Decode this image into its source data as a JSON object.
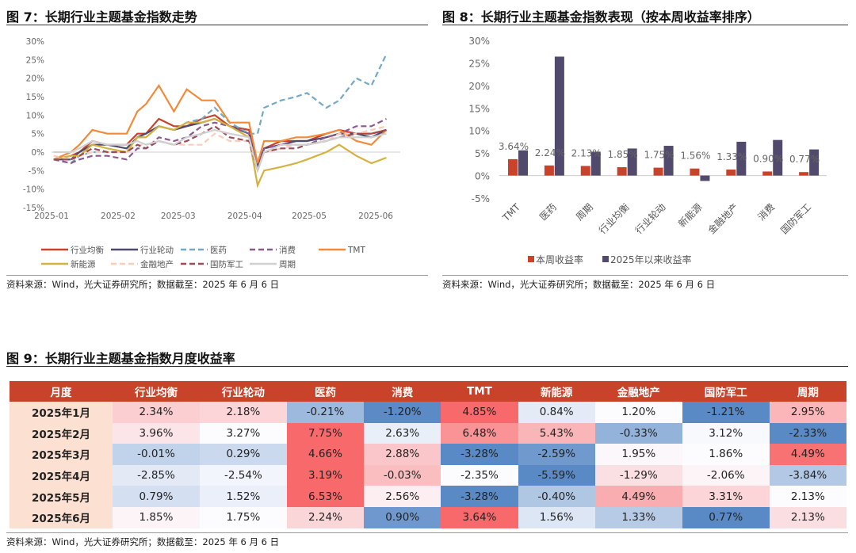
{
  "fig7": {
    "title": "图 7：长期行业主题基金指数走势",
    "source": "资料来源：Wind，光大证券研究所；数据截至：2025 年 6 月 6 日"
  },
  "fig8": {
    "title": "图 8：长期行业主题基金指数表现（按本周收益率排序）",
    "source": "资料来源：Wind，光大证券研究所；数据截至：2025 年 6 月 6 日"
  },
  "fig9": {
    "title": "图 9：长期行业主题基金指数月度收益率",
    "source": "资料来源：Wind，光大证券研究所；数据截至：2025 年 6 月 6 日"
  },
  "chart_data": [
    {
      "type": "line",
      "ylim": [
        -15,
        30
      ],
      "yticks": [
        "30%",
        "25%",
        "20%",
        "15%",
        "10%",
        "5%",
        "0%",
        "-5%",
        "-10%",
        "-15%"
      ],
      "ytick_values": [
        30,
        25,
        20,
        15,
        10,
        5,
        0,
        -5,
        -10,
        -15
      ],
      "xticks": [
        "2025-01",
        "2025-02",
        "2025-03",
        "2025-04",
        "2025-05",
        "2025-06"
      ],
      "legend": "bottom",
      "x": [
        "2025-01-02",
        "2025-01-10",
        "2025-01-14",
        "2025-01-20",
        "2025-01-27",
        "2025-02-05",
        "2025-02-10",
        "2025-02-14",
        "2025-02-20",
        "2025-02-27",
        "2025-03-05",
        "2025-03-12",
        "2025-03-18",
        "2025-03-25",
        "2025-04-03",
        "2025-04-07",
        "2025-04-10",
        "2025-04-18",
        "2025-04-25",
        "2025-04-30",
        "2025-05-09",
        "2025-05-15",
        "2025-05-23",
        "2025-05-30",
        "2025-06-06"
      ],
      "series": [
        {
          "name": "行业均衡",
          "color": "#c8432a",
          "dash": false,
          "values": [
            -2,
            -1,
            0,
            3,
            2,
            2,
            5,
            5,
            9,
            7,
            7,
            9,
            10,
            7,
            6,
            -4,
            1,
            3,
            3,
            3,
            5,
            6,
            5,
            5,
            6
          ]
        },
        {
          "name": "行业轮动",
          "color": "#4e4a6e",
          "dash": false,
          "values": [
            -2,
            -2,
            0,
            2,
            2,
            1,
            4,
            5,
            7,
            6,
            7,
            8,
            9,
            7,
            5,
            -4,
            1,
            2,
            3,
            3,
            4,
            5,
            5,
            4,
            6
          ]
        },
        {
          "name": "医药",
          "color": "#74a9c4",
          "dash": true,
          "values": [
            -2,
            -3,
            -1,
            0,
            0,
            0,
            4,
            4,
            7,
            6,
            8,
            9,
            12,
            8,
            5,
            5,
            12,
            14,
            15,
            16,
            12,
            14,
            20,
            18,
            26.5
          ]
        },
        {
          "name": "消费",
          "color": "#8a5a8f",
          "dash": true,
          "values": [
            -2,
            -3,
            -2,
            -1,
            -1,
            -2,
            1,
            1,
            4,
            3,
            4,
            7,
            8,
            7,
            5,
            -5,
            1,
            2,
            2,
            2,
            4,
            5,
            7,
            7,
            9
          ]
        },
        {
          "name": "TMT",
          "color": "#f28a3a",
          "dash": false,
          "values": [
            -2,
            0,
            2,
            6,
            5,
            5,
            11,
            13,
            18,
            11,
            17,
            14,
            14,
            8,
            8,
            -3,
            3,
            3,
            4,
            4,
            5,
            6,
            3,
            2,
            6
          ]
        },
        {
          "name": "新能源",
          "color": "#d4b23f",
          "dash": false,
          "values": [
            -2,
            -1,
            -1,
            2,
            1,
            0,
            4,
            4,
            7,
            6,
            8,
            8,
            9,
            7,
            4,
            -9,
            -5,
            -4,
            -3,
            -2,
            0,
            2,
            -1,
            -3,
            -1.5
          ]
        },
        {
          "name": "金融地产",
          "color": "#f9cdb8",
          "dash": true,
          "values": [
            -1,
            -2,
            -1,
            0,
            0,
            0,
            2,
            2,
            3,
            2,
            2,
            2,
            5,
            3,
            3,
            -5,
            0,
            1,
            2,
            2,
            3,
            5,
            5,
            6,
            7
          ]
        },
        {
          "name": "国防军工",
          "color": "#9b4a5a",
          "dash": true,
          "values": [
            -2,
            -2,
            -1,
            1,
            0,
            0,
            2,
            1,
            3,
            2,
            3,
            5,
            7,
            4,
            3,
            -5,
            0,
            1,
            1,
            2,
            3,
            4,
            5,
            5,
            6
          ]
        },
        {
          "name": "周期",
          "color": "#d0d0d0",
          "dash": false,
          "values": [
            0,
            0,
            1,
            3,
            2,
            2,
            3,
            2,
            3,
            2,
            4,
            5,
            6,
            5,
            4,
            -5,
            0,
            2,
            2,
            2,
            3,
            4,
            4,
            4,
            5
          ]
        }
      ]
    },
    {
      "type": "bar",
      "ylim": [
        -5,
        30
      ],
      "yticks": [
        "30%",
        "25%",
        "20%",
        "15%",
        "10%",
        "5%",
        "0%",
        "-5%"
      ],
      "ytick_values": [
        30,
        25,
        20,
        15,
        10,
        5,
        0,
        -5
      ],
      "legend": "bottom",
      "categories": [
        "TMT",
        "医药",
        "周期",
        "行业均衡",
        "行业轮动",
        "新能源",
        "金融地产",
        "消费",
        "国防军工"
      ],
      "series": [
        {
          "name": "本周收益率",
          "color": "#c8432a",
          "values": [
            3.64,
            2.24,
            2.13,
            1.85,
            1.75,
            1.56,
            1.33,
            0.9,
            0.77
          ],
          "labels": [
            "3.64%",
            "2.24%",
            "2.13%",
            "1.85%",
            "1.75%",
            "1.56%",
            "1.33%",
            "0.90%",
            "0.77%"
          ]
        },
        {
          "name": "2025年以来收益率",
          "color": "#514a6c",
          "values": [
            5.6,
            26.4,
            5.3,
            6.0,
            6.6,
            -1.2,
            7.5,
            7.9,
            5.8
          ]
        }
      ]
    },
    {
      "type": "table",
      "header": [
        "月度",
        "行业均衡",
        "行业轮动",
        "医药",
        "消费",
        "TMT",
        "新能源",
        "金融地产",
        "国防军工",
        "周期"
      ],
      "rows": [
        [
          "2025年1月",
          "2.34%",
          "2.18%",
          "-0.21%",
          "-1.20%",
          "4.85%",
          "0.84%",
          "1.20%",
          "-1.21%",
          "2.95%"
        ],
        [
          "2025年2月",
          "3.96%",
          "3.27%",
          "7.75%",
          "2.63%",
          "6.48%",
          "5.43%",
          "-0.33%",
          "3.12%",
          "-2.33%"
        ],
        [
          "2025年3月",
          "-0.01%",
          "0.29%",
          "4.66%",
          "2.88%",
          "-3.28%",
          "-2.59%",
          "1.95%",
          "1.86%",
          "4.49%"
        ],
        [
          "2025年4月",
          "-2.85%",
          "-2.54%",
          "3.19%",
          "-0.03%",
          "-2.35%",
          "-5.59%",
          "-1.29%",
          "-2.06%",
          "-3.84%"
        ],
        [
          "2025年5月",
          "0.79%",
          "1.52%",
          "6.53%",
          "2.56%",
          "-3.28%",
          "-0.40%",
          "4.49%",
          "3.31%",
          "2.13%"
        ],
        [
          "2025年6月",
          "1.85%",
          "1.75%",
          "2.24%",
          "0.90%",
          "3.64%",
          "1.56%",
          "1.33%",
          "0.77%",
          "2.13%"
        ]
      ]
    }
  ]
}
